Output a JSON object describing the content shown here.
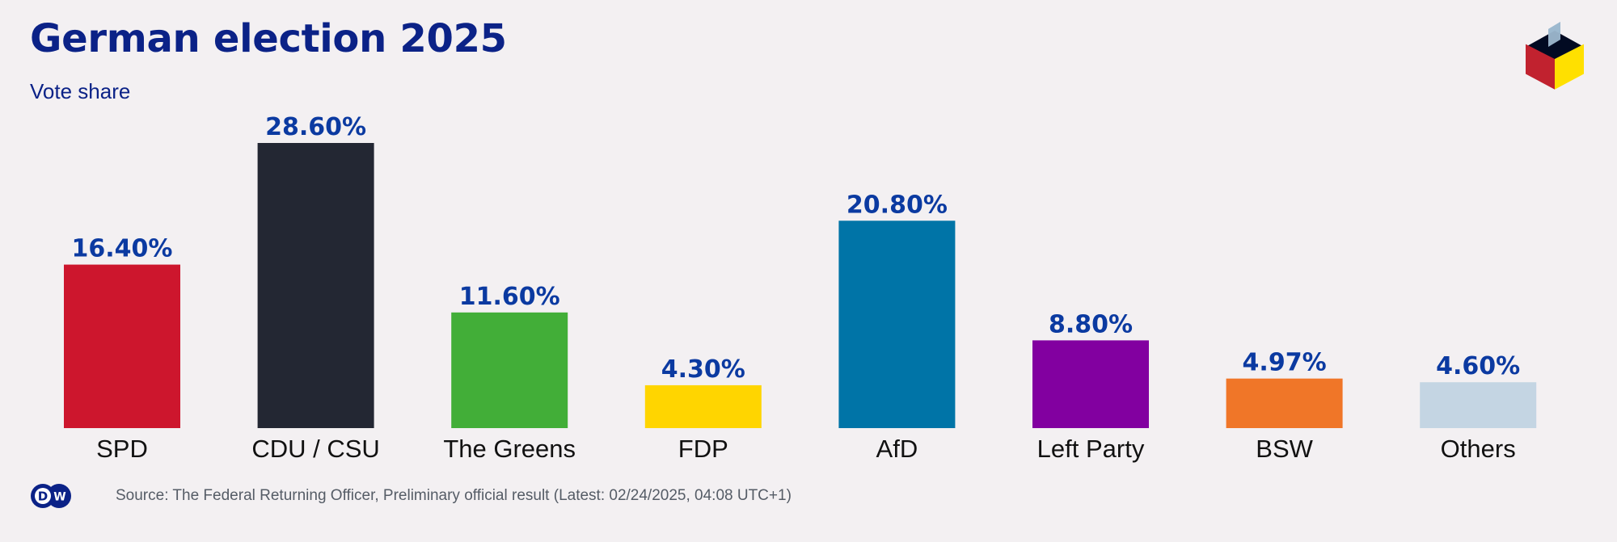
{
  "header": {
    "title": "German election 2025",
    "subtitle": "Vote share"
  },
  "footer": {
    "logo_text": "DW",
    "source": "Source: The Federal Returning Officer, Preliminary official result (Latest: 02/24/2025, 04:08 UTC+1)"
  },
  "icons": {
    "ballot_box": "ballot-box-icon",
    "brand_logo": "dw-logo-icon"
  },
  "colors": {
    "title": "#0b2287",
    "value_label": "#0b3aa1",
    "background": "#f3f0f2"
  },
  "chart_data": {
    "type": "bar",
    "title": "German election 2025",
    "subtitle": "Vote share",
    "xlabel": "",
    "ylabel": "",
    "ylim": [
      0,
      28.6
    ],
    "grid": false,
    "legend": "none",
    "categories": [
      "SPD",
      "CDU / CSU",
      "The Greens",
      "FDP",
      "AfD",
      "Left Party",
      "BSW",
      "Others"
    ],
    "values": [
      16.4,
      28.6,
      11.6,
      4.3,
      20.8,
      8.8,
      4.97,
      4.6
    ],
    "value_labels": [
      "16.40%",
      "28.60%",
      "11.60%",
      "4.30%",
      "20.80%",
      "8.80%",
      "4.97%",
      "4.60%"
    ],
    "colors": [
      "#cd162d",
      "#232733",
      "#42ae38",
      "#ffd500",
      "#0074a7",
      "#8200a0",
      "#f07628",
      "#c4d5e3"
    ],
    "unit": "%"
  }
}
